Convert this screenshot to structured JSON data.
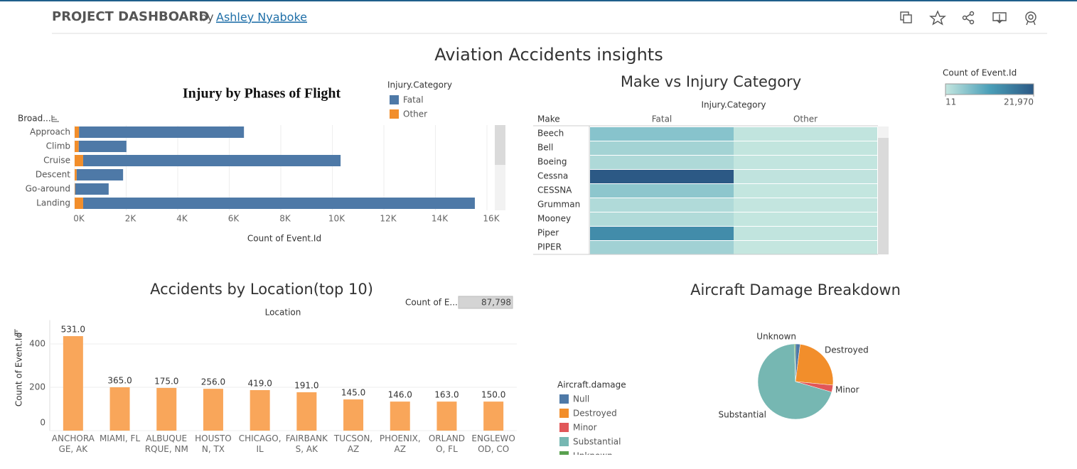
{
  "header": {
    "title": "PROJECT DASHBOARD",
    "by": "by",
    "author": "Ashley Nyaboke"
  },
  "dashboard_title": "Aviation Accidents insights",
  "chart_data": [
    {
      "type": "hbar_stacked",
      "title": "Injury by Phases of Flight",
      "y_title": "Broad...",
      "x_title": "Count of Event.Id",
      "legend_title": "Injury.Category",
      "categories": [
        "Approach",
        "Climb",
        "Cruise",
        "Descent",
        "Go-around",
        "Landing"
      ],
      "series": [
        {
          "name": "Fatal",
          "color": "#4e79a7",
          "values": [
            6400,
            1850,
            9990,
            1800,
            1300,
            15200
          ]
        },
        {
          "name": "Other",
          "color": "#f28e2b",
          "values": [
            170,
            160,
            330,
            80,
            20,
            330
          ]
        }
      ],
      "xlim": [
        0,
        16300
      ],
      "xticks": [
        {
          "value": 0,
          "label": "0K"
        },
        {
          "value": 2000,
          "label": "2K"
        },
        {
          "value": 4000,
          "label": "4K"
        },
        {
          "value": 6000,
          "label": "6K"
        },
        {
          "value": 8000,
          "label": "8K"
        },
        {
          "value": 10000,
          "label": "10K"
        },
        {
          "value": 12000,
          "label": "12K"
        },
        {
          "value": 14000,
          "label": "14K"
        },
        {
          "value": 16000,
          "label": "16K"
        }
      ],
      "grid": true
    },
    {
      "type": "heatmap",
      "title": "Make vs Injury Category",
      "x_title": "Injury.Category",
      "y_title": "Make",
      "y": [
        "Beech",
        "Bell",
        "Boeing",
        "Cessna",
        "CESSNA",
        "Grumman",
        "Mooney",
        "Piper",
        "PIPER"
      ],
      "series": [
        {
          "name": "Fatal",
          "values": [
            5500,
            3000,
            2000,
            21970,
            5000,
            1800,
            1700,
            14000,
            3200
          ]
        },
        {
          "name": "Other",
          "values": [
            300,
            200,
            150,
            400,
            60,
            100,
            80,
            300,
            40
          ]
        }
      ],
      "color_title": "Count of Event.Id",
      "clim": [
        11,
        21970
      ],
      "color_ticks": [
        11,
        {
          "value": 21970,
          "label": "21,970"
        }
      ],
      "colors": [
        "#c4e6df",
        "#4a9fb8",
        "#2c5985"
      ]
    },
    {
      "type": "bar",
      "title": "Accidents by Location(top 10)",
      "x_title": "Location",
      "y_title": "Count of Event.Id",
      "categories": [
        "ANCHORAGE, AK",
        "MIAMI, FL",
        "ALBUQUERQUE, NM",
        "HOUSTON, TX",
        "CHICAGO, IL",
        "FAIRBANKS, AK",
        "TUCSON, AZ",
        "PHOENIX, AZ",
        "ORLANDO, FL",
        "ENGLEWOOD, CO"
      ],
      "values": [
        436,
        200,
        197,
        193,
        187,
        177,
        144,
        134,
        134,
        134
      ],
      "annotations": [
        {
          "value": 531,
          "label": "531.0"
        },
        {
          "value": 365,
          "label": "365.0"
        },
        {
          "value": 175,
          "label": "175.0"
        },
        {
          "value": 256,
          "label": "256.0"
        },
        {
          "value": 419,
          "label": "419.0"
        },
        {
          "value": 191,
          "label": "191.0"
        },
        {
          "value": 145,
          "label": "145.0"
        },
        {
          "value": 146,
          "label": "146.0"
        },
        {
          "value": 163,
          "label": "163.0"
        },
        {
          "value": 150,
          "label": "150.0"
        }
      ],
      "color": "#f9a65a",
      "ylim": [
        0,
        510
      ],
      "yticks": [
        0,
        200,
        400
      ],
      "grid": true,
      "filter": {
        "label": "Count of E...",
        "value": {
          "value": 87798,
          "label": "87,798"
        }
      }
    },
    {
      "type": "pie",
      "title": "Aircraft Damage Breakdown",
      "legend_title": "Aircraft.damage",
      "categories": [
        "Null",
        "Destroyed",
        "Minor",
        "Substantial",
        "Unknown"
      ],
      "values": [
        2,
        24.5,
        3,
        70,
        0.5
      ],
      "colors": [
        "#4e79a7",
        "#f28e2b",
        "#e15759",
        "#76b7b2",
        "#59a14f"
      ]
    }
  ]
}
